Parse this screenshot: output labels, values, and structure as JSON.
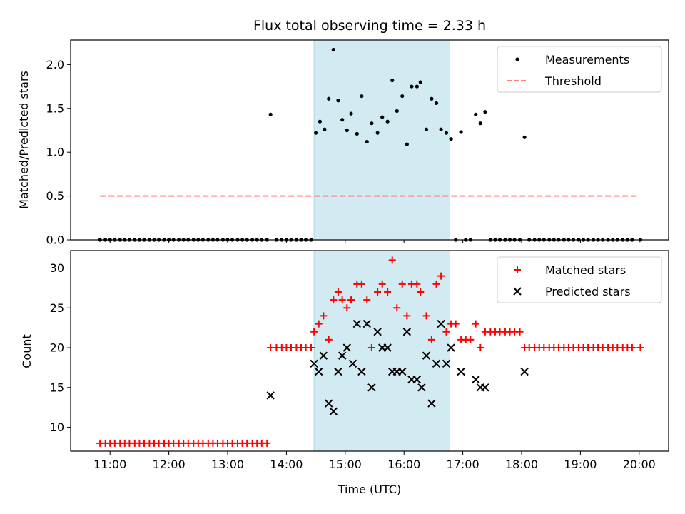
{
  "chart_data": [
    {
      "type": "scatter",
      "title": "Flux total observing time = 2.33 h",
      "ylabel": "Matched/Predicted stars",
      "xlabel": "",
      "xlim": [
        10.33,
        20.5
      ],
      "ylim": [
        0,
        2.28
      ],
      "yticks": [
        0.0,
        0.5,
        1.0,
        1.5,
        2.0
      ],
      "ytick_labels": [
        "0.0",
        "0.5",
        "1.0",
        "1.5",
        "2.0"
      ],
      "legend_position": "top-right",
      "highlight_band": {
        "x": [
          14.47,
          16.78
        ],
        "color": "#add8e6"
      },
      "series": [
        {
          "name": "Measurements",
          "marker": "dot",
          "color": "#000000",
          "x": [
            10.83,
            10.92,
            11.0,
            11.08,
            11.17,
            11.25,
            11.33,
            11.42,
            11.5,
            11.58,
            11.67,
            11.75,
            11.83,
            11.92,
            12.0,
            12.08,
            12.17,
            12.25,
            12.33,
            12.42,
            12.5,
            12.58,
            12.67,
            12.75,
            12.83,
            12.92,
            13.0,
            13.08,
            13.17,
            13.25,
            13.33,
            13.42,
            13.5,
            13.58,
            13.67,
            13.73,
            13.83,
            13.92,
            14.0,
            14.08,
            14.17,
            14.25,
            14.33,
            14.42,
            14.5,
            14.57,
            14.65,
            14.72,
            14.8,
            14.88,
            14.95,
            15.03,
            15.1,
            15.2,
            15.28,
            15.37,
            15.45,
            15.55,
            15.63,
            15.72,
            15.8,
            15.88,
            15.97,
            16.05,
            16.13,
            16.22,
            16.28,
            16.38,
            16.47,
            16.55,
            16.63,
            16.72,
            16.8,
            16.88,
            16.97,
            17.05,
            17.13,
            17.22,
            17.3,
            17.38,
            17.47,
            17.55,
            17.63,
            17.72,
            17.8,
            17.88,
            17.97,
            18.05,
            18.13,
            18.22,
            18.3,
            18.38,
            18.47,
            18.55,
            18.63,
            18.72,
            18.8,
            18.88,
            18.97,
            19.05,
            19.13,
            19.22,
            19.3,
            19.38,
            19.47,
            19.55,
            19.63,
            19.72,
            19.8,
            19.88,
            20.02
          ],
          "y": [
            0,
            0,
            0,
            0,
            0,
            0,
            0,
            0,
            0,
            0,
            0,
            0,
            0,
            0,
            0,
            0,
            0,
            0,
            0,
            0,
            0,
            0,
            0,
            0,
            0,
            0,
            0,
            0,
            0,
            0,
            0,
            0,
            0,
            0,
            0,
            1.43,
            0,
            0,
            0,
            0,
            0,
            0,
            0,
            0,
            1.22,
            1.35,
            1.26,
            1.61,
            2.17,
            1.59,
            1.37,
            1.25,
            1.44,
            1.21,
            1.64,
            1.12,
            1.33,
            1.22,
            1.4,
            1.35,
            1.82,
            1.47,
            1.64,
            1.09,
            1.75,
            1.75,
            1.8,
            1.26,
            1.61,
            1.56,
            1.26,
            1.22,
            1.15,
            0,
            1.23,
            0,
            0,
            1.43,
            1.33,
            1.46,
            0,
            0,
            0,
            0,
            0,
            0,
            0,
            1.17,
            0,
            0,
            0,
            0,
            0,
            0,
            0,
            0,
            0,
            0,
            0,
            0,
            0,
            0,
            0,
            0,
            0,
            0,
            0,
            0,
            0,
            0,
            0
          ]
        },
        {
          "name": "Threshold",
          "marker": "dashed-line",
          "color": "#ff7f7f",
          "x": [
            10.83,
            20.0
          ],
          "y": [
            0.5,
            0.5
          ]
        }
      ]
    },
    {
      "type": "scatter",
      "title": "",
      "ylabel": "Count",
      "xlabel": "Time (UTC)",
      "xlim": [
        10.33,
        20.5
      ],
      "ylim": [
        7,
        32.2
      ],
      "yticks": [
        10,
        15,
        20,
        25,
        30
      ],
      "ytick_labels": [
        "10",
        "15",
        "20",
        "25",
        "30"
      ],
      "xticks": [
        11,
        12,
        13,
        14,
        15,
        16,
        17,
        18,
        19,
        20
      ],
      "xtick_labels": [
        "11:00",
        "12:00",
        "13:00",
        "14:00",
        "15:00",
        "16:00",
        "17:00",
        "18:00",
        "19:00",
        "20:00"
      ],
      "legend_position": "top-right",
      "highlight_band": {
        "x": [
          14.47,
          16.78
        ],
        "color": "#add8e6"
      },
      "series": [
        {
          "name": "Matched stars",
          "marker": "plus",
          "color": "#ff0000",
          "x": [
            10.83,
            10.92,
            11.0,
            11.08,
            11.17,
            11.25,
            11.33,
            11.42,
            11.5,
            11.58,
            11.67,
            11.75,
            11.83,
            11.92,
            12.0,
            12.08,
            12.17,
            12.25,
            12.33,
            12.42,
            12.5,
            12.58,
            12.67,
            12.75,
            12.83,
            12.92,
            13.0,
            13.08,
            13.17,
            13.25,
            13.33,
            13.42,
            13.5,
            13.58,
            13.67,
            13.73,
            13.83,
            13.92,
            14.0,
            14.08,
            14.17,
            14.25,
            14.33,
            14.42,
            14.47,
            14.55,
            14.63,
            14.72,
            14.8,
            14.88,
            14.95,
            15.03,
            15.1,
            15.2,
            15.28,
            15.37,
            15.45,
            15.55,
            15.63,
            15.72,
            15.8,
            15.88,
            15.97,
            16.05,
            16.13,
            16.22,
            16.28,
            16.38,
            16.47,
            16.55,
            16.63,
            16.72,
            16.8,
            16.88,
            16.97,
            17.05,
            17.13,
            17.22,
            17.3,
            17.38,
            17.47,
            17.55,
            17.63,
            17.72,
            17.8,
            17.88,
            17.97,
            18.05,
            18.13,
            18.22,
            18.3,
            18.38,
            18.47,
            18.55,
            18.63,
            18.72,
            18.8,
            18.88,
            18.97,
            19.05,
            19.13,
            19.22,
            19.3,
            19.38,
            19.47,
            19.55,
            19.63,
            19.72,
            19.8,
            19.88,
            20.02
          ],
          "y": [
            8,
            8,
            8,
            8,
            8,
            8,
            8,
            8,
            8,
            8,
            8,
            8,
            8,
            8,
            8,
            8,
            8,
            8,
            8,
            8,
            8,
            8,
            8,
            8,
            8,
            8,
            8,
            8,
            8,
            8,
            8,
            8,
            8,
            8,
            8,
            20,
            20,
            20,
            20,
            20,
            20,
            20,
            20,
            20,
            22,
            23,
            24,
            21,
            26,
            27,
            26,
            25,
            26,
            28,
            28,
            26,
            20,
            27,
            28,
            27,
            31,
            25,
            28,
            24,
            28,
            28,
            27,
            24,
            21,
            28,
            29,
            22,
            23,
            23,
            21,
            21,
            21,
            23,
            20,
            22,
            22,
            22,
            22,
            22,
            22,
            22,
            22,
            20,
            20,
            20,
            20,
            20,
            20,
            20,
            20,
            20,
            20,
            20,
            20,
            20,
            20,
            20,
            20,
            20,
            20,
            20,
            20,
            20,
            20,
            20,
            20
          ]
        },
        {
          "name": "Predicted stars",
          "marker": "x",
          "color": "#000000",
          "x": [
            13.73,
            14.47,
            14.55,
            14.63,
            14.72,
            14.8,
            14.88,
            14.95,
            15.03,
            15.13,
            15.2,
            15.28,
            15.37,
            15.45,
            15.55,
            15.63,
            15.72,
            15.8,
            15.88,
            15.97,
            16.05,
            16.13,
            16.22,
            16.3,
            16.38,
            16.47,
            16.55,
            16.63,
            16.72,
            16.8,
            16.97,
            17.22,
            17.3,
            17.38,
            18.05
          ],
          "y": [
            14,
            18,
            17,
            19,
            13,
            12,
            17,
            19,
            20,
            18,
            23,
            17,
            23,
            15,
            22,
            20,
            20,
            17,
            17,
            17,
            22,
            16,
            16,
            15,
            19,
            13,
            18,
            23,
            18,
            20,
            17,
            16,
            15,
            15,
            17
          ]
        }
      ]
    }
  ]
}
